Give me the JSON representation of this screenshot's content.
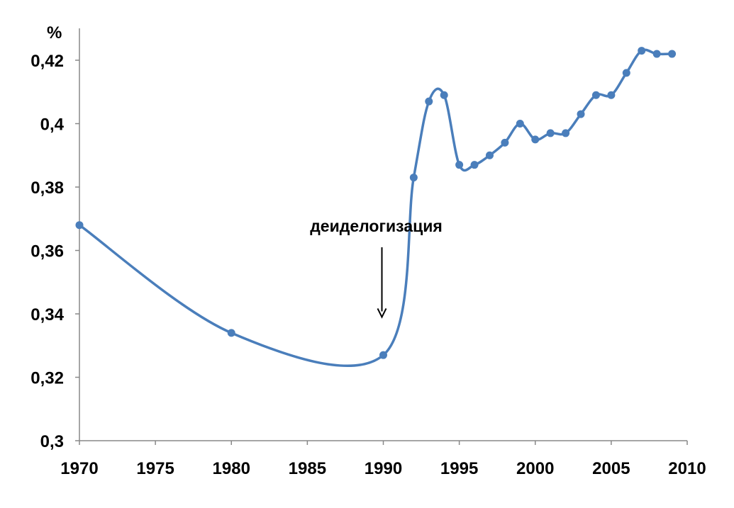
{
  "chart_data": {
    "type": "line",
    "title": "",
    "xlabel": "",
    "ylabel": "%",
    "xlim": [
      1970,
      2010
    ],
    "ylim": [
      0.3,
      0.43
    ],
    "x_ticks": [
      1970,
      1975,
      1980,
      1985,
      1990,
      1995,
      2000,
      2005,
      2010
    ],
    "x_tick_labels": [
      "1970",
      "1975",
      "1980",
      "1985",
      "1990",
      "1995",
      "2000",
      "2005",
      "2010"
    ],
    "y_ticks": [
      0.3,
      0.32,
      0.34,
      0.36,
      0.38,
      0.4,
      0.42
    ],
    "y_tick_labels": [
      "0,3",
      "0,32",
      "0,34",
      "0,36",
      "0,38",
      "0,4",
      "0,42"
    ],
    "grid": false,
    "legend": "none",
    "series": [
      {
        "color": "#4a7ebb",
        "x": [
          1970,
          1980,
          1990,
          1992,
          1993,
          1994,
          1995,
          1996,
          1997,
          1998,
          1999,
          2000,
          2001,
          2002,
          2003,
          2004,
          2005,
          2006,
          2007,
          2008,
          2009
        ],
        "y": [
          0.368,
          0.334,
          0.327,
          0.383,
          0.407,
          0.409,
          0.387,
          0.387,
          0.39,
          0.394,
          0.4,
          0.395,
          0.397,
          0.397,
          0.403,
          0.409,
          0.409,
          0.416,
          0.423,
          0.422,
          0.422
        ]
      }
    ],
    "annotations": [
      {
        "text": "деиделогизация",
        "arrow_x": 1990,
        "arrow_y_from": 0.361,
        "arrow_y_to": 0.339
      }
    ]
  }
}
